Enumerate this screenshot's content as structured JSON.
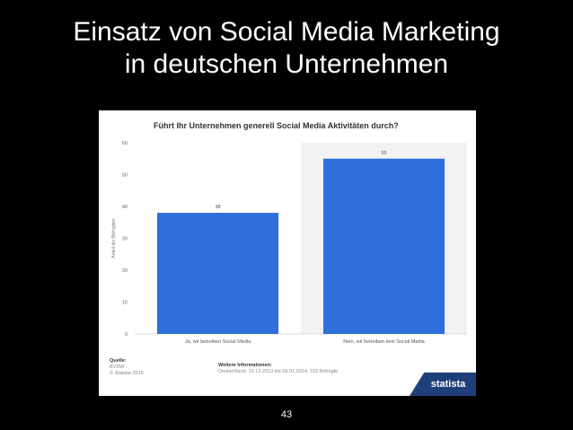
{
  "slide": {
    "title_line1": "Einsatz von Social Media Marketing",
    "title_line2": "in deutschen Unternehmen",
    "page_number": "43"
  },
  "chart_data": {
    "type": "bar",
    "title": "Führt Ihr Unternehmen generell Social Media Aktivitäten durch?",
    "categories": [
      "Ja, wir betreiben Social Media",
      "Nein, wir betreiben kein Social Media"
    ],
    "values": [
      38,
      55
    ],
    "value_labels": [
      "38",
      "55"
    ],
    "ylabel": "Anteil der Befragten",
    "xlabel": "",
    "ylim": [
      0,
      60
    ],
    "yticks": [
      0,
      10,
      20,
      30,
      40,
      50,
      60
    ],
    "bar_color": "#2e6fdb",
    "grid": false
  },
  "footer": {
    "source_head": "Quelle:",
    "source_lines": [
      "BVDW",
      "© Statista 2015"
    ],
    "info_head": "Weitere Informationen:",
    "info_line": "Deutschland; 12.12.2013 bis 09.01.2014; 103 Befragte",
    "logo_text": "statista"
  }
}
